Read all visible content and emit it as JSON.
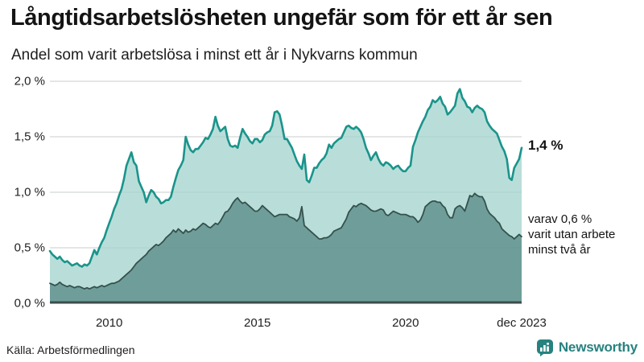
{
  "title": "Långtidsarbetslösheten ungefär som för ett år sen",
  "subtitle": "Andel som varit arbetslösa i minst ett år i Nykvarns kommun",
  "source": "Källa: Arbetsförmedlingen",
  "brand": {
    "name": "Newsworthy",
    "color": "#27827f"
  },
  "annotations": {
    "latest_total": "1,4 %",
    "subset_lines": [
      "varav 0,6 %",
      "varit utan arbete",
      "minst två år"
    ]
  },
  "colors": {
    "total_line": "#1a948b",
    "total_fill": "#b9ded9",
    "subset_line": "#35514d",
    "subset_fill": "#6f9e9a",
    "gridline": "#e2e2e2",
    "axis_line": "#3d4c4a"
  },
  "chart_data": {
    "type": "area",
    "frequency": "monthly",
    "x_start": "2008-01",
    "x_end": "2023-12",
    "ylim": [
      0,
      2.0
    ],
    "grid": true,
    "legend_position": "none",
    "y_ticks": [
      {
        "value": 0.0,
        "label": "0,0 %"
      },
      {
        "value": 0.5,
        "label": "0,5 %"
      },
      {
        "value": 1.0,
        "label": "1,0 %"
      },
      {
        "value": 1.5,
        "label": "1,5 %"
      },
      {
        "value": 2.0,
        "label": "2,0 %"
      }
    ],
    "x_ticks": [
      {
        "index": 24,
        "label": "2010"
      },
      {
        "index": 84,
        "label": "2015"
      },
      {
        "index": 144,
        "label": "2020"
      },
      {
        "index": 191,
        "label": "dec 2023"
      }
    ],
    "series": [
      {
        "name": "Andel arbetslösa minst ett år",
        "latest_value": 1.4,
        "values": [
          0.47,
          0.44,
          0.42,
          0.4,
          0.42,
          0.39,
          0.37,
          0.38,
          0.36,
          0.34,
          0.35,
          0.36,
          0.34,
          0.33,
          0.35,
          0.34,
          0.36,
          0.42,
          0.48,
          0.44,
          0.5,
          0.55,
          0.59,
          0.66,
          0.72,
          0.78,
          0.85,
          0.9,
          0.97,
          1.03,
          1.12,
          1.24,
          1.3,
          1.36,
          1.27,
          1.24,
          1.1,
          1.05,
          1.0,
          0.91,
          0.97,
          1.02,
          1.0,
          0.96,
          0.94,
          0.9,
          0.91,
          0.93,
          0.93,
          0.96,
          1.05,
          1.13,
          1.2,
          1.24,
          1.29,
          1.5,
          1.43,
          1.38,
          1.36,
          1.39,
          1.39,
          1.42,
          1.45,
          1.49,
          1.48,
          1.52,
          1.57,
          1.68,
          1.6,
          1.55,
          1.57,
          1.59,
          1.48,
          1.42,
          1.41,
          1.42,
          1.4,
          1.49,
          1.57,
          1.53,
          1.5,
          1.46,
          1.44,
          1.48,
          1.48,
          1.45,
          1.47,
          1.52,
          1.54,
          1.55,
          1.6,
          1.72,
          1.73,
          1.7,
          1.6,
          1.48,
          1.48,
          1.44,
          1.4,
          1.34,
          1.28,
          1.24,
          1.21,
          1.34,
          1.11,
          1.09,
          1.15,
          1.22,
          1.22,
          1.26,
          1.29,
          1.31,
          1.35,
          1.43,
          1.4,
          1.44,
          1.46,
          1.48,
          1.49,
          1.54,
          1.59,
          1.6,
          1.58,
          1.57,
          1.59,
          1.57,
          1.54,
          1.48,
          1.4,
          1.35,
          1.29,
          1.33,
          1.36,
          1.3,
          1.26,
          1.24,
          1.27,
          1.26,
          1.24,
          1.21,
          1.23,
          1.24,
          1.21,
          1.19,
          1.19,
          1.22,
          1.24,
          1.41,
          1.47,
          1.54,
          1.59,
          1.64,
          1.68,
          1.74,
          1.77,
          1.83,
          1.81,
          1.83,
          1.86,
          1.8,
          1.77,
          1.7,
          1.72,
          1.75,
          1.78,
          1.89,
          1.93,
          1.85,
          1.82,
          1.77,
          1.76,
          1.72,
          1.76,
          1.78,
          1.76,
          1.75,
          1.72,
          1.64,
          1.6,
          1.57,
          1.55,
          1.53,
          1.47,
          1.41,
          1.37,
          1.3,
          1.13,
          1.11,
          1.22,
          1.26,
          1.3,
          1.4
        ]
      },
      {
        "name": "varav utan arbete minst två år",
        "latest_value": 0.6,
        "values": [
          0.18,
          0.17,
          0.16,
          0.17,
          0.19,
          0.17,
          0.16,
          0.15,
          0.16,
          0.15,
          0.14,
          0.15,
          0.15,
          0.14,
          0.13,
          0.14,
          0.13,
          0.14,
          0.15,
          0.14,
          0.15,
          0.16,
          0.15,
          0.16,
          0.17,
          0.18,
          0.18,
          0.19,
          0.2,
          0.22,
          0.24,
          0.26,
          0.28,
          0.3,
          0.33,
          0.36,
          0.38,
          0.4,
          0.42,
          0.44,
          0.47,
          0.49,
          0.51,
          0.53,
          0.52,
          0.54,
          0.56,
          0.59,
          0.61,
          0.63,
          0.66,
          0.64,
          0.67,
          0.65,
          0.63,
          0.66,
          0.64,
          0.65,
          0.67,
          0.66,
          0.68,
          0.7,
          0.72,
          0.71,
          0.69,
          0.68,
          0.7,
          0.72,
          0.71,
          0.74,
          0.78,
          0.82,
          0.83,
          0.86,
          0.9,
          0.93,
          0.95,
          0.92,
          0.9,
          0.91,
          0.89,
          0.87,
          0.85,
          0.83,
          0.83,
          0.85,
          0.88,
          0.86,
          0.84,
          0.82,
          0.8,
          0.78,
          0.79,
          0.8,
          0.8,
          0.8,
          0.8,
          0.78,
          0.77,
          0.76,
          0.74,
          0.77,
          0.87,
          0.7,
          0.68,
          0.66,
          0.64,
          0.62,
          0.6,
          0.58,
          0.58,
          0.59,
          0.59,
          0.6,
          0.62,
          0.65,
          0.66,
          0.67,
          0.68,
          0.72,
          0.76,
          0.82,
          0.85,
          0.88,
          0.87,
          0.89,
          0.9,
          0.89,
          0.88,
          0.86,
          0.84,
          0.83,
          0.83,
          0.84,
          0.85,
          0.84,
          0.8,
          0.79,
          0.81,
          0.83,
          0.82,
          0.81,
          0.8,
          0.8,
          0.8,
          0.79,
          0.78,
          0.78,
          0.76,
          0.73,
          0.75,
          0.8,
          0.87,
          0.89,
          0.91,
          0.92,
          0.92,
          0.91,
          0.91,
          0.88,
          0.86,
          0.8,
          0.77,
          0.77,
          0.85,
          0.87,
          0.88,
          0.86,
          0.83,
          0.9,
          0.97,
          0.96,
          0.99,
          0.97,
          0.96,
          0.96,
          0.92,
          0.85,
          0.81,
          0.79,
          0.77,
          0.74,
          0.72,
          0.67,
          0.65,
          0.63,
          0.61,
          0.6,
          0.58,
          0.6,
          0.62,
          0.6
        ]
      }
    ]
  }
}
